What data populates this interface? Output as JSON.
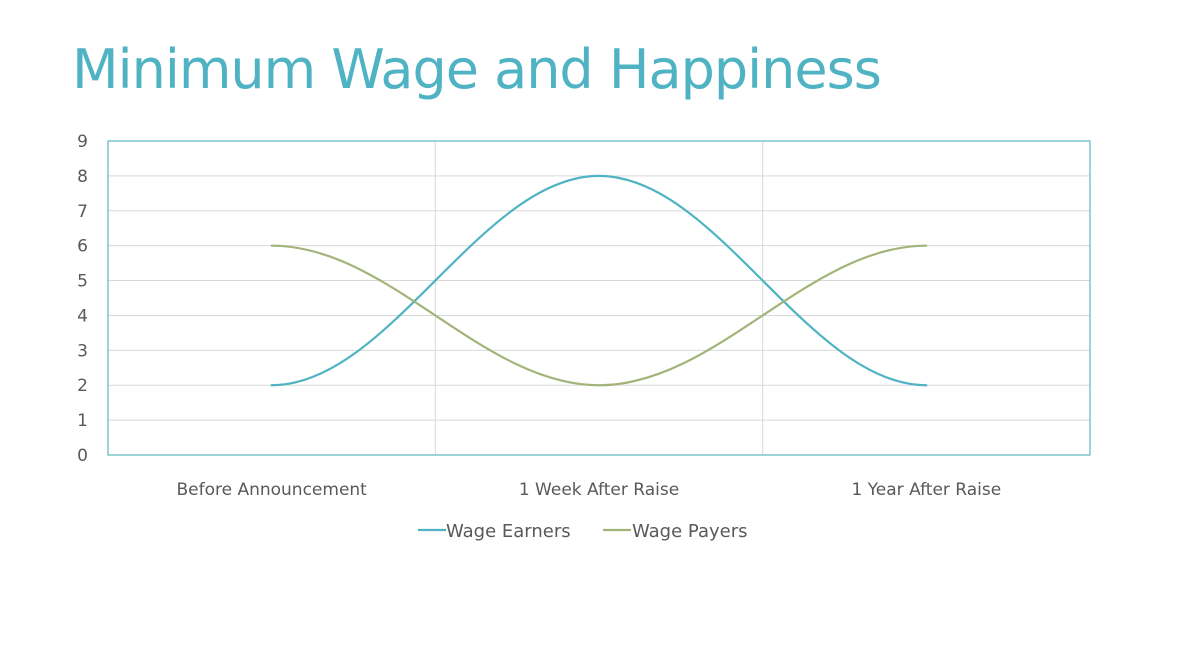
{
  "slide": {
    "title": "Minimum Wage and Happiness"
  },
  "colors": {
    "title": "#4fb3c4",
    "frame": "#5ab8c0",
    "grid": "#d9d9d9"
  },
  "chart_data": {
    "type": "line",
    "title": "",
    "xlabel": "",
    "ylabel": "",
    "categories": [
      "Before Announcement",
      "1 Week After Raise",
      "1 Year After Raise"
    ],
    "ylim": [
      0,
      9
    ],
    "yticks": [
      0,
      1,
      2,
      3,
      4,
      5,
      6,
      7,
      8,
      9
    ],
    "grid": true,
    "smooth": true,
    "legend": "bottom",
    "series": [
      {
        "name": "Wage Earners",
        "values": [
          2,
          8,
          2
        ],
        "color": "#4fb3c4"
      },
      {
        "name": "Wage Payers",
        "values": [
          6,
          2,
          6
        ],
        "color": "#a3b47a"
      }
    ]
  }
}
